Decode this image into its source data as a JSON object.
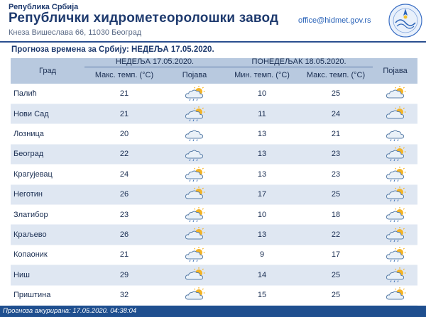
{
  "header": {
    "republic": "Република Србија",
    "institute": "Републички хидрометеоролошки завод",
    "address": "Кнеза Вишеслава 66, 11030 Београд",
    "email": "office@hidmet.gov.rs"
  },
  "caption": "Прогноза времена за Србију: НЕДЕЉА  17.05.2020.",
  "table": {
    "col_city": "Град",
    "day1": "НЕДЕЉА  17.05.2020.",
    "day2": "ПОНЕДЕЉАК  18.05.2020.",
    "col_max": "Макс. темп. (°C)",
    "col_min": "Мин. темп. (°C)",
    "col_max2": "Макс. темп. (°C)",
    "col_wx": "Појава",
    "col_wx2": "Појава",
    "rows": [
      {
        "city": "Палић",
        "d1_max": "21",
        "d1_icon": "sun-cloud-rain-icon",
        "d2_min": "10",
        "d2_max": "25",
        "d2_icon": "sun-cloud-icon"
      },
      {
        "city": "Нови Сад",
        "d1_max": "21",
        "d1_icon": "sun-cloud-rain-icon",
        "d2_min": "11",
        "d2_max": "24",
        "d2_icon": "sun-cloud-icon"
      },
      {
        "city": "Лозница",
        "d1_max": "20",
        "d1_icon": "cloud-rain-icon",
        "d2_min": "13",
        "d2_max": "21",
        "d2_icon": "cloud-rain-icon"
      },
      {
        "city": "Београд",
        "d1_max": "22",
        "d1_icon": "cloud-rain-icon",
        "d2_min": "13",
        "d2_max": "23",
        "d2_icon": "sun-cloud-rain-icon"
      },
      {
        "city": "Крагујевац",
        "d1_max": "24",
        "d1_icon": "sun-cloud-rain-icon",
        "d2_min": "13",
        "d2_max": "23",
        "d2_icon": "sun-cloud-rain-icon"
      },
      {
        "city": "Неготин",
        "d1_max": "26",
        "d1_icon": "sun-cloud-icon",
        "d2_min": "17",
        "d2_max": "25",
        "d2_icon": "sun-cloud-rain-icon"
      },
      {
        "city": "Златибор",
        "d1_max": "23",
        "d1_icon": "sun-cloud-rain-icon",
        "d2_min": "10",
        "d2_max": "18",
        "d2_icon": "sun-cloud-rain-icon"
      },
      {
        "city": "Краљево",
        "d1_max": "26",
        "d1_icon": "sun-cloud-icon",
        "d2_min": "13",
        "d2_max": "22",
        "d2_icon": "sun-cloud-rain-icon"
      },
      {
        "city": "Копаоник",
        "d1_max": "21",
        "d1_icon": "sun-cloud-rain-icon",
        "d2_min": "9",
        "d2_max": "17",
        "d2_icon": "sun-cloud-rain-icon"
      },
      {
        "city": "Ниш",
        "d1_max": "29",
        "d1_icon": "sun-cloud-icon",
        "d2_min": "14",
        "d2_max": "25",
        "d2_icon": "sun-cloud-rain-icon"
      },
      {
        "city": "Приштина",
        "d1_max": "32",
        "d1_icon": "sun-cloud-icon",
        "d2_min": "15",
        "d2_max": "25",
        "d2_icon": "sun-cloud-icon"
      }
    ]
  },
  "footer": "Прогноза ажурирана:  17.05.2020. 04:38:04",
  "colors": {
    "header_row": "#b8c9df",
    "alt_row": "#dfe7f2",
    "footer_bar": "#1f4f8f",
    "title": "#1e3a6e"
  }
}
